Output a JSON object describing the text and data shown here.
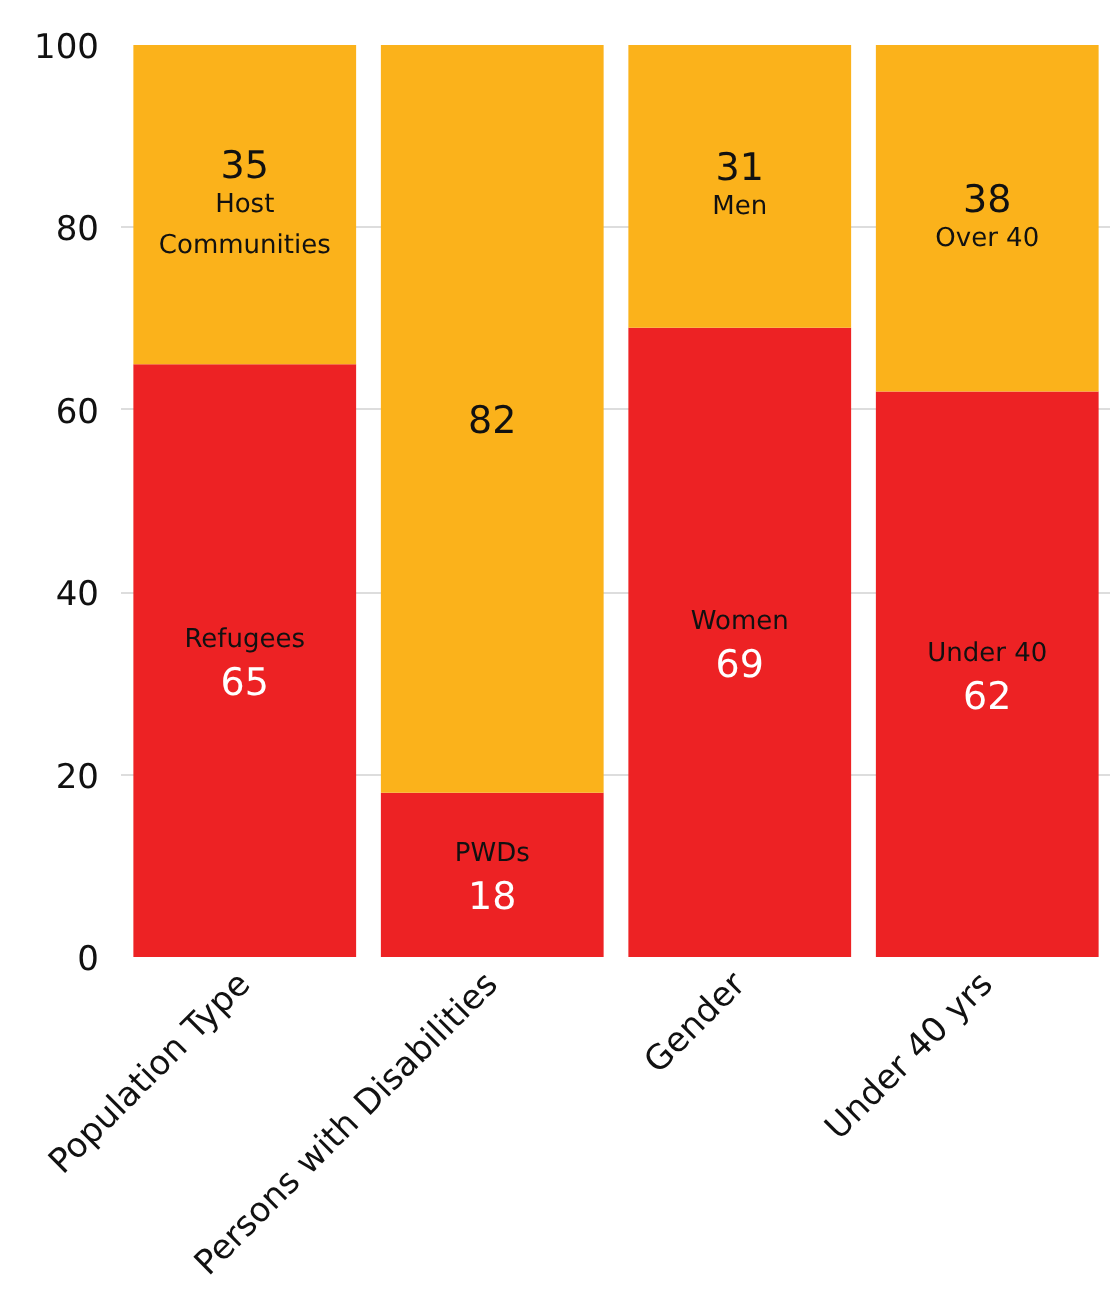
{
  "chart_data": {
    "type": "bar",
    "stacked": true,
    "categories": [
      "Population Type",
      "Persons with Disabilities",
      "Gender",
      "Under 40 yrs"
    ],
    "series": [
      {
        "color": "#ed2224",
        "values": [
          65,
          18,
          69,
          62
        ],
        "value_labels": [
          "Refugees\n65",
          "PWDs\n18",
          "Women\n69",
          "Under 40\n62"
        ]
      },
      {
        "color": "#fbb21b",
        "values": [
          35,
          82,
          31,
          38
        ],
        "value_labels": [
          "35\nHost\nCommunities",
          "82",
          "31\nMen",
          "38\nOver 40"
        ]
      }
    ],
    "ylim": [
      0,
      100
    ],
    "yticks": [
      0,
      20,
      40,
      60,
      80,
      100
    ],
    "grid": "y"
  }
}
